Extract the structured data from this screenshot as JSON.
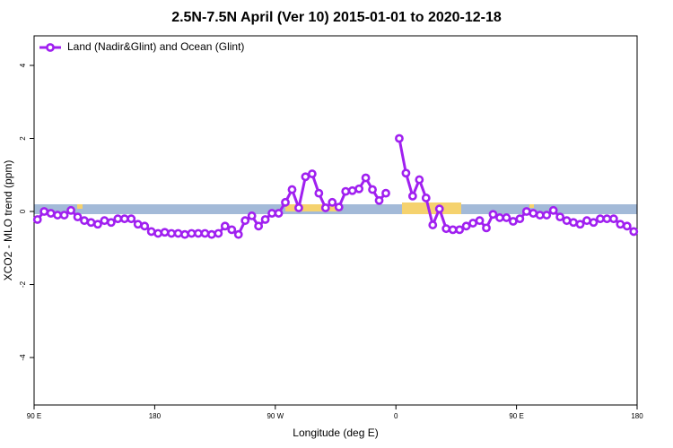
{
  "chart_data": {
    "type": "line",
    "title": "2.5N-7.5N April (Ver 10)   2015-01-01 to 2020-12-18",
    "x_label": "Longitude (deg E)",
    "y_label": "XCO2 - MLO trend (ppm)",
    "x": [
      92.5,
      97.5,
      102.5,
      107.5,
      112.5,
      117.5,
      122.5,
      127.5,
      132.5,
      137.5,
      142.5,
      147.5,
      152.5,
      157.5,
      162.5,
      167.5,
      172.5,
      177.5,
      182.5,
      187.5,
      192.5,
      197.5,
      202.5,
      207.5,
      212.5,
      217.5,
      222.5,
      227.5,
      232.5,
      237.5,
      242.5,
      247.5,
      252.5,
      257.5,
      262.5,
      267.5,
      272.5,
      277.5,
      282.5,
      287.5,
      292.5,
      297.5,
      302.5,
      307.5,
      312.5,
      317.5,
      322.5,
      327.5,
      332.5,
      337.5,
      342.5,
      347.5,
      352.5,
      357.5,
      362.5,
      367.5,
      372.5,
      377.5,
      382.5,
      387.5,
      392.5,
      397.5,
      402.5,
      407.5,
      412.5,
      417.5,
      422.5,
      427.5,
      432.5,
      437.5,
      442.5,
      447.5,
      452.5,
      457.5,
      462.5,
      467.5,
      472.5,
      477.5,
      482.5,
      487.5,
      492.5,
      497.5,
      502.5,
      507.5,
      512.5,
      517.5,
      522.5,
      527.5,
      532.5,
      537.5
    ],
    "series": [
      {
        "name": "Land (Nadir&Glint) and Ocean (Glint)",
        "color": "#a020f0",
        "values": [
          -0.22,
          0,
          -0.05,
          -0.1,
          -0.1,
          0.03,
          -0.15,
          -0.25,
          -0.3,
          -0.35,
          -0.25,
          -0.3,
          -0.2,
          -0.2,
          -0.2,
          -0.35,
          -0.4,
          -0.55,
          -0.6,
          -0.57,
          -0.6,
          -0.6,
          -0.63,
          -0.6,
          -0.6,
          -0.6,
          -0.63,
          -0.6,
          -0.4,
          -0.5,
          -0.63,
          -0.25,
          -0.12,
          -0.4,
          -0.22,
          -0.05,
          -0.05,
          0.25,
          0.6,
          0.1,
          0.95,
          1.03,
          0.5,
          0.1,
          0.25,
          0.12,
          0.55,
          0.57,
          0.62,
          0.92,
          0.6,
          0.3,
          0.5,
          null,
          2.0,
          1.05,
          0.42,
          0.87,
          0.37,
          -0.37,
          0.07,
          -0.47,
          -0.5,
          -0.5,
          -0.4,
          -0.32,
          -0.25,
          -0.45,
          -0.08,
          -0.17,
          -0.17,
          -0.27,
          -0.2,
          0,
          -0.05,
          -0.1,
          -0.1,
          0.03,
          -0.15,
          -0.25,
          -0.3,
          -0.35,
          -0.25,
          -0.3,
          -0.2,
          -0.2,
          -0.2,
          -0.35,
          -0.4,
          -0.55
        ]
      }
    ],
    "xlim": [
      90,
      540
    ],
    "xticks": [
      {
        "value": 90,
        "label": "90 E"
      },
      {
        "value": 180,
        "label": "180"
      },
      {
        "value": 270,
        "label": "90 W"
      },
      {
        "value": 360,
        "label": "0"
      },
      {
        "value": 450,
        "label": "90 E"
      },
      {
        "value": 540,
        "label": "180"
      }
    ],
    "ylim": [
      -5.3,
      4.81
    ],
    "yticks": [
      -4,
      -2,
      0,
      2,
      4
    ],
    "legend": "top-left"
  }
}
